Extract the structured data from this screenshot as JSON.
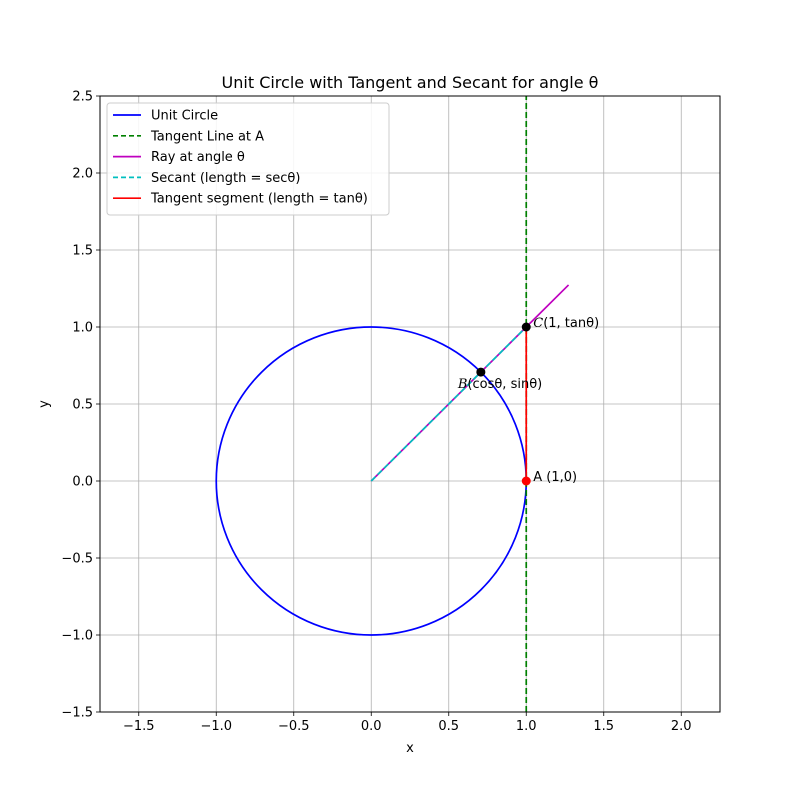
{
  "chart_data": {
    "type": "line",
    "title": "Unit Circle with Tangent and Secant for angle θ",
    "xlabel": "x",
    "ylabel": "y",
    "xlim": [
      -1.75,
      2.25
    ],
    "ylim": [
      -1.5,
      2.5
    ],
    "xticks": [
      -1.5,
      -1.0,
      -0.5,
      0.0,
      0.5,
      1.0,
      1.5,
      2.0
    ],
    "xtick_labels": [
      "−1.5",
      "−1.0",
      "−0.5",
      "0.0",
      "0.5",
      "1.0",
      "1.5",
      "2.0"
    ],
    "yticks": [
      -1.5,
      -1.0,
      -0.5,
      0.0,
      0.5,
      1.0,
      1.5,
      2.0,
      2.5
    ],
    "ytick_labels": [
      "−1.5",
      "−1.0",
      "−0.5",
      "0.0",
      "0.5",
      "1.0",
      "1.5",
      "2.0",
      "2.5"
    ],
    "grid": true,
    "legend_position": "top-left",
    "theta_deg": 45,
    "series": [
      {
        "name": "Unit Circle",
        "kind": "circle",
        "center": [
          0,
          0
        ],
        "radius": 1,
        "color": "#0000ff",
        "dash": "solid"
      },
      {
        "name": "Tangent Line at A",
        "kind": "line",
        "x": [
          1,
          1
        ],
        "y": [
          -1.5,
          2.5
        ],
        "color": "#008000",
        "dash": "dashed"
      },
      {
        "name": "Ray at angle θ",
        "kind": "line",
        "x": [
          0,
          1.273
        ],
        "y": [
          0,
          1.273
        ],
        "color": "#bf00bf",
        "dash": "solid"
      },
      {
        "name": "Secant (length = secθ)",
        "kind": "line",
        "x": [
          0,
          1
        ],
        "y": [
          0,
          1
        ],
        "color": "#00bfbf",
        "dash": "dashed"
      },
      {
        "name": "Tangent segment (length = tanθ)",
        "kind": "line",
        "x": [
          1,
          1
        ],
        "y": [
          0,
          1
        ],
        "color": "#ff0000",
        "dash": "solid"
      }
    ],
    "points": [
      {
        "id": "A",
        "x": 1.0,
        "y": 0.0,
        "color": "#ff0000",
        "label": "A (1,0)"
      },
      {
        "id": "B",
        "x": 0.7071,
        "y": 0.7071,
        "color": "#000000",
        "label_prefix": "B",
        "label_math": "(cosθ, sinθ)"
      },
      {
        "id": "C",
        "x": 1.0,
        "y": 1.0,
        "color": "#000000",
        "label_prefix": "C",
        "label_math": "(1, tanθ)"
      }
    ]
  }
}
